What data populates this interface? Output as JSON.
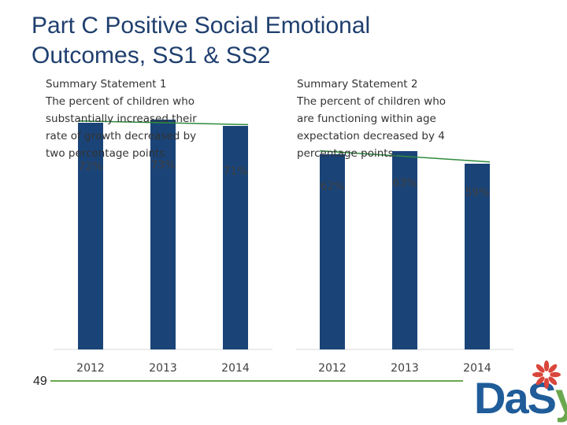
{
  "slide": {
    "title_line1": "Part C Positive Social Emotional",
    "title_line2": "Outcomes, SS1 & SS2",
    "page_number": "49"
  },
  "ss1_statement": {
    "lines": [
      "Summary Statement 1",
      "The percent of children who",
      "substantially increased their",
      "rate of growth decreased by",
      "two percentage points"
    ]
  },
  "ss2_statement": {
    "lines": [
      "Summary Statement 2",
      "The percent of children who",
      "are functioning within age",
      "expectation decreased by 4",
      "percentage points."
    ]
  },
  "logo": {
    "text_main": "DaS",
    "text_accent": "y"
  },
  "colors": {
    "bar": "#1a4478",
    "trend": "#2e8b3e",
    "title": "#1f3f6e",
    "axis": "#d9d9d9"
  },
  "chart_data": [
    {
      "type": "bar",
      "title": "Summary Statement 1",
      "categories": [
        "2012",
        "2013",
        "2014"
      ],
      "values": [
        72,
        73,
        71
      ],
      "value_labels": [
        "72%",
        "73%",
        "71%"
      ],
      "ylim": [
        0,
        75
      ],
      "trendline": "linear",
      "xlabel": "",
      "ylabel": "",
      "grid": false
    },
    {
      "type": "bar",
      "title": "Summary Statement 2",
      "categories": [
        "2012",
        "2013",
        "2014"
      ],
      "values": [
        62,
        63,
        59
      ],
      "value_labels": [
        "62%",
        "63%",
        "59%"
      ],
      "ylim": [
        0,
        75
      ],
      "trendline": "linear",
      "xlabel": "",
      "ylabel": "",
      "grid": false
    }
  ]
}
